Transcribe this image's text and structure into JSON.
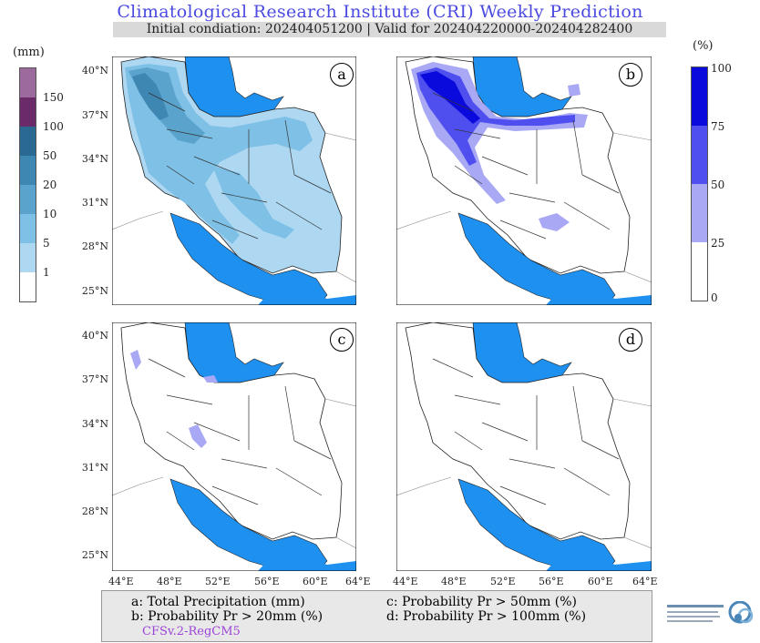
{
  "header": {
    "title": "Climatological Research Institute (CRI) Weekly Prediction",
    "subtitle": "Initial condiation: 202404051200 | Valid for 202404220000-202404282400"
  },
  "left_colorbar": {
    "unit": "(mm)",
    "levels": [
      "150",
      "100",
      "50",
      "20",
      "10",
      "5",
      "1"
    ],
    "colors": [
      "#ffffff",
      "#aed8f2",
      "#7ec0e6",
      "#5aa3cc",
      "#3f87b3",
      "#2a6a92",
      "#6b2a6a",
      "#9c6a9c"
    ]
  },
  "right_colorbar": {
    "unit": "(%)",
    "levels": [
      "100",
      "75",
      "50",
      "25",
      "0"
    ],
    "colors": [
      "#ffffff",
      "#a8a8f5",
      "#4f4ff0",
      "#0a0adc"
    ]
  },
  "panels": [
    {
      "letter": "a"
    },
    {
      "letter": "b"
    },
    {
      "letter": "c"
    },
    {
      "letter": "d"
    }
  ],
  "axes": {
    "lat_labels": [
      "40°N",
      "37°N",
      "34°N",
      "31°N",
      "28°N",
      "25°N"
    ],
    "lon_labels": [
      "44°E",
      "48°E",
      "52°E",
      "56°E",
      "60°E",
      "64°E"
    ]
  },
  "legend": {
    "a": "a: Total Precipitation (mm)",
    "b": "b: Probability Pr > 20mm (%)",
    "c": "c: Probability Pr > 50mm (%)",
    "d": "d: Probability Pr > 100mm (%)",
    "model": "CFSv.2-RegCM5"
  },
  "colors": {
    "sea": "#1e90f0",
    "title": "#4a4ae0",
    "model": "#9c44d8"
  }
}
